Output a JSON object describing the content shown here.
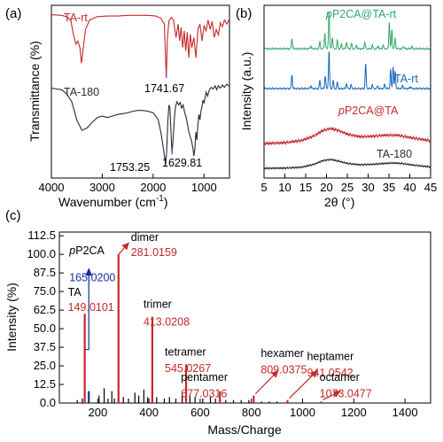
{
  "chart_data": [
    {
      "panel": "(a)",
      "type": "line",
      "xlabel": "Wavenumber (cm",
      "xlabel_sup": "-1",
      "xlabel_end": ")",
      "ylabel": "Transmittance (%)",
      "xlim": [
        4000,
        500
      ],
      "xticks": [
        4000,
        3000,
        2000,
        1000
      ],
      "xtick_labels": [
        "4000",
        "3000",
        "2000",
        "1000"
      ],
      "series": [
        {
          "name": "TA-rt",
          "color": "#c62828",
          "points": [
            [
              4000,
              0.94
            ],
            [
              3800,
              0.93
            ],
            [
              3700,
              0.91
            ],
            [
              3620,
              0.86
            ],
            [
              3560,
              0.62
            ],
            [
              3520,
              0.5
            ],
            [
              3480,
              0.55
            ],
            [
              3440,
              0.45
            ],
            [
              3410,
              0.22
            ],
            [
              3380,
              0.4
            ],
            [
              3330,
              0.72
            ],
            [
              3250,
              0.86
            ],
            [
              3100,
              0.91
            ],
            [
              2900,
              0.92
            ],
            [
              2700,
              0.92
            ],
            [
              2500,
              0.93
            ],
            [
              2300,
              0.93
            ],
            [
              2100,
              0.93
            ],
            [
              1950,
              0.92
            ],
            [
              1850,
              0.89
            ],
            [
              1780,
              0.8
            ],
            [
              1741.67,
              0.0
            ],
            [
              1720,
              0.58
            ],
            [
              1690,
              0.85
            ],
            [
              1640,
              0.9
            ],
            [
              1600,
              0.86
            ],
            [
              1550,
              0.6
            ],
            [
              1510,
              0.8
            ],
            [
              1480,
              0.55
            ],
            [
              1450,
              0.75
            ],
            [
              1420,
              0.45
            ],
            [
              1390,
              0.7
            ],
            [
              1360,
              0.4
            ],
            [
              1330,
              0.68
            ],
            [
              1300,
              0.3
            ],
            [
              1270,
              0.65
            ],
            [
              1240,
              0.45
            ],
            [
              1200,
              0.6
            ],
            [
              1160,
              0.3
            ],
            [
              1120,
              0.72
            ],
            [
              1080,
              0.8
            ],
            [
              1040,
              0.55
            ],
            [
              1000,
              0.78
            ],
            [
              960,
              0.7
            ],
            [
              920,
              0.86
            ],
            [
              880,
              0.72
            ],
            [
              840,
              0.84
            ],
            [
              800,
              0.6
            ],
            [
              760,
              0.72
            ],
            [
              720,
              0.64
            ],
            [
              680,
              0.82
            ],
            [
              640,
              0.76
            ],
            [
              600,
              0.86
            ],
            [
              550,
              0.8
            ],
            [
              500,
              0.88
            ]
          ]
        },
        {
          "name": "TA-180",
          "color": "#2b2b2b",
          "points": [
            [
              4000,
              0.95
            ],
            [
              3800,
              0.93
            ],
            [
              3700,
              0.88
            ],
            [
              3600,
              0.78
            ],
            [
              3500,
              0.55
            ],
            [
              3400,
              0.42
            ],
            [
              3300,
              0.45
            ],
            [
              3200,
              0.52
            ],
            [
              3100,
              0.58
            ],
            [
              3000,
              0.6
            ],
            [
              2900,
              0.58
            ],
            [
              2800,
              0.6
            ],
            [
              2700,
              0.62
            ],
            [
              2600,
              0.63
            ],
            [
              2500,
              0.64
            ],
            [
              2400,
              0.66
            ],
            [
              2300,
              0.67
            ],
            [
              2200,
              0.67
            ],
            [
              2100,
              0.66
            ],
            [
              2000,
              0.64
            ],
            [
              1950,
              0.6
            ],
            [
              1900,
              0.55
            ],
            [
              1850,
              0.4
            ],
            [
              1800,
              0.2
            ],
            [
              1770,
              0.06
            ],
            [
              1753.25,
              0.0
            ],
            [
              1735,
              0.15
            ],
            [
              1710,
              0.55
            ],
            [
              1690,
              0.74
            ],
            [
              1670,
              0.7
            ],
            [
              1650,
              0.4
            ],
            [
              1629.81,
              0.12
            ],
            [
              1610,
              0.3
            ],
            [
              1580,
              0.6
            ],
            [
              1560,
              0.72
            ],
            [
              1530,
              0.78
            ],
            [
              1500,
              0.74
            ],
            [
              1470,
              0.77
            ],
            [
              1440,
              0.7
            ],
            [
              1410,
              0.74
            ],
            [
              1380,
              0.64
            ],
            [
              1350,
              0.58
            ],
            [
              1320,
              0.48
            ],
            [
              1300,
              0.4
            ],
            [
              1280,
              0.36
            ],
            [
              1250,
              0.3
            ],
            [
              1220,
              0.2
            ],
            [
              1200,
              0.1
            ],
            [
              1180,
              0.18
            ],
            [
              1160,
              0.4
            ],
            [
              1140,
              0.3
            ],
            [
              1120,
              0.5
            ],
            [
              1100,
              0.62
            ],
            [
              1080,
              0.55
            ],
            [
              1060,
              0.66
            ],
            [
              1040,
              0.72
            ],
            [
              1020,
              0.8
            ],
            [
              1000,
              0.76
            ],
            [
              960,
              0.9
            ],
            [
              930,
              0.85
            ],
            [
              900,
              0.92
            ],
            [
              860,
              0.96
            ],
            [
              820,
              0.94
            ],
            [
              780,
              0.98
            ],
            [
              750,
              0.93
            ],
            [
              720,
              0.98
            ],
            [
              680,
              0.95
            ],
            [
              640,
              0.99
            ],
            [
              600,
              0.96
            ],
            [
              550,
              1.0
            ],
            [
              500,
              0.97
            ]
          ]
        }
      ],
      "annotations": [
        {
          "text": "1741.67",
          "x": 1741.67,
          "color": "#000000"
        },
        {
          "text": "1753.25",
          "x": 1753.25,
          "color": "#000000"
        },
        {
          "text": "1629.81",
          "x": 1629.81,
          "color": "#000000"
        }
      ],
      "marker_color": "#6a4fc7",
      "grid": false
    },
    {
      "panel": "(b)",
      "type": "line",
      "xlabel": "2θ (°)",
      "ylabel": "Intensity (a.u.)",
      "xlim": [
        5,
        45
      ],
      "xticks": [
        5,
        10,
        15,
        20,
        25,
        30,
        35,
        40,
        45
      ],
      "xtick_labels": [
        "5",
        "10",
        "15",
        "20",
        "25",
        "30",
        "35",
        "40",
        "45"
      ],
      "series": [
        {
          "name": "pP2CA@TA-rt",
          "name_italic_prefix": "p",
          "name_rest": "P2CA@TA-rt",
          "color": "#2ea86a",
          "baseline": 0,
          "peaks": [
            [
              11.7,
              0.28
            ],
            [
              16.2,
              0.08
            ],
            [
              18.4,
              0.18
            ],
            [
              19.6,
              0.42
            ],
            [
              20.6,
              1.0
            ],
            [
              21.4,
              0.3
            ],
            [
              22.6,
              0.22
            ],
            [
              23.6,
              0.12
            ],
            [
              24.8,
              0.18
            ],
            [
              26.0,
              0.14
            ],
            [
              27.2,
              0.1
            ],
            [
              29.2,
              0.18
            ],
            [
              31.0,
              0.1
            ],
            [
              32.4,
              0.08
            ],
            [
              33.6,
              0.1
            ],
            [
              35.1,
              0.72
            ],
            [
              35.7,
              0.5
            ],
            [
              36.5,
              0.26
            ],
            [
              38.5,
              0.08
            ],
            [
              40.5,
              0.06
            ]
          ]
        },
        {
          "name": "TA-rt",
          "color": "#1565c0",
          "baseline": 0,
          "peaks": [
            [
              11.7,
              0.38
            ],
            [
              16.2,
              0.08
            ],
            [
              18.4,
              0.2
            ],
            [
              19.7,
              0.35
            ],
            [
              20.6,
              1.0
            ],
            [
              21.6,
              0.22
            ],
            [
              22.6,
              0.16
            ],
            [
              24.8,
              0.14
            ],
            [
              25.9,
              0.1
            ],
            [
              29.4,
              0.65
            ],
            [
              31.0,
              0.1
            ],
            [
              32.3,
              0.08
            ],
            [
              34.0,
              0.12
            ],
            [
              35.4,
              0.5
            ],
            [
              36.0,
              0.6
            ],
            [
              36.5,
              0.45
            ],
            [
              38.3,
              0.08
            ],
            [
              40.2,
              0.06
            ]
          ]
        },
        {
          "name": "pP2CA@TA",
          "name_italic_prefix": "p",
          "name_rest": "P2CA@TA",
          "color": "#c62828",
          "halo": [
            [
              5,
              0.0
            ],
            [
              10,
              0.05
            ],
            [
              14,
              0.2
            ],
            [
              17,
              0.5
            ],
            [
              19,
              0.85
            ],
            [
              21,
              1.0
            ],
            [
              23,
              0.85
            ],
            [
              25,
              0.62
            ],
            [
              28,
              0.45
            ],
            [
              31,
              0.48
            ],
            [
              34,
              0.55
            ],
            [
              37,
              0.55
            ],
            [
              40,
              0.4
            ],
            [
              45,
              0.18
            ]
          ]
        },
        {
          "name": "TA-180",
          "color": "#2b2b2b",
          "halo": [
            [
              5,
              0.0
            ],
            [
              10,
              0.02
            ],
            [
              14,
              0.12
            ],
            [
              17,
              0.45
            ],
            [
              19,
              0.85
            ],
            [
              21,
              1.0
            ],
            [
              23,
              0.8
            ],
            [
              25,
              0.55
            ],
            [
              28,
              0.4
            ],
            [
              31,
              0.45
            ],
            [
              34,
              0.55
            ],
            [
              36,
              0.6
            ],
            [
              38,
              0.55
            ],
            [
              41,
              0.35
            ],
            [
              45,
              0.15
            ]
          ]
        }
      ],
      "grid": false
    },
    {
      "panel": "(c)",
      "type": "bar",
      "xlabel": "Mass/Charge",
      "ylabel": "Intensity (%)",
      "xlim": [
        50,
        1500
      ],
      "ylim": [
        0,
        115
      ],
      "xticks": [
        200,
        400,
        600,
        800,
        1000,
        1200,
        1400
      ],
      "xtick_labels": [
        "200",
        "400",
        "600",
        "800",
        "1000",
        "1200",
        "1400"
      ],
      "yticks": [
        0.0,
        12.5,
        25.0,
        37.5,
        50.0,
        62.5,
        75.0,
        87.5,
        100.0,
        112.5
      ],
      "ytick_labels": [
        "0.0",
        "12.5",
        "25.0",
        "37.5",
        "50.0",
        "62.5",
        "75.0",
        "87.5",
        "100.0",
        "112.5"
      ],
      "labeled_peaks": [
        {
          "name": "TA",
          "mz": 149.0101,
          "mz_label": "149.0101",
          "intensity": 60,
          "color": "#c62828",
          "name_color": "#000000"
        },
        {
          "name_italic_prefix": "p",
          "name_rest": "P2CA",
          "mz": 165.02,
          "mz_label": "165.0200",
          "intensity": 8,
          "color": "#1a2fa0",
          "name_color": "#000000"
        },
        {
          "name": "dimer",
          "mz": 281.0159,
          "mz_label": "281.0159",
          "intensity": 100,
          "color": "#c62828",
          "name_color": "#000000"
        },
        {
          "name": "trimer",
          "mz": 413.0208,
          "mz_label": "413.0208",
          "intensity": 58,
          "color": "#c62828",
          "name_color": "#000000"
        },
        {
          "name": "tetramer",
          "mz": 545.0267,
          "mz_label": "545.0267",
          "intensity": 26,
          "color": "#c62828",
          "name_color": "#000000"
        },
        {
          "name": "pentamer",
          "mz": 677.0316,
          "mz_label": "677.0316",
          "intensity": 8,
          "color": "#c62828",
          "name_color": "#000000"
        },
        {
          "name": "hexamer",
          "mz": 809.0375,
          "mz_label": "809.0375",
          "intensity": 5,
          "color": "#c62828",
          "name_color": "#000000"
        },
        {
          "name": "heptamer",
          "mz": 941.0542,
          "mz_label": "941.0542",
          "intensity": 2,
          "color": "#c62828",
          "name_color": "#000000"
        },
        {
          "name": "octamer",
          "mz": 1073.0477,
          "mz_label": "1073.0477",
          "intensity": 1,
          "color": "#c62828",
          "name_color": "#000000"
        }
      ],
      "minor_peaks": [
        [
          120,
          2
        ],
        [
          140,
          3
        ],
        [
          205,
          5
        ],
        [
          225,
          10
        ],
        [
          240,
          3
        ],
        [
          255,
          8
        ],
        [
          265,
          3
        ],
        [
          300,
          4
        ],
        [
          320,
          3
        ],
        [
          345,
          7
        ],
        [
          360,
          5
        ],
        [
          380,
          9
        ],
        [
          395,
          4
        ],
        [
          430,
          4
        ],
        [
          460,
          3
        ],
        [
          480,
          4
        ],
        [
          505,
          3
        ],
        [
          530,
          7
        ],
        [
          560,
          5
        ],
        [
          580,
          4
        ],
        [
          610,
          3
        ],
        [
          640,
          4
        ],
        [
          660,
          3
        ],
        [
          700,
          2
        ],
        [
          730,
          2
        ],
        [
          760,
          2
        ],
        [
          790,
          2
        ],
        [
          840,
          1
        ],
        [
          870,
          1
        ],
        [
          900,
          1
        ]
      ],
      "grid": false
    }
  ]
}
